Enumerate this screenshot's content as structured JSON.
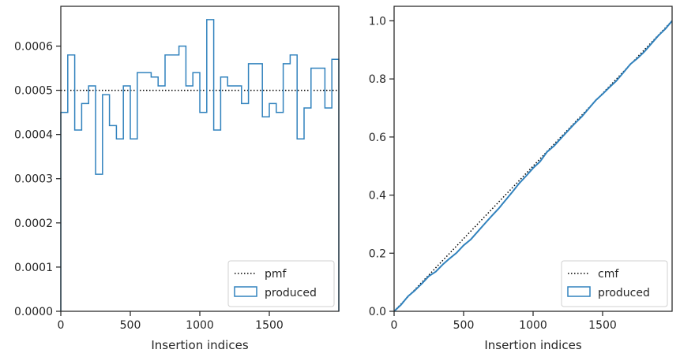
{
  "chart_data": [
    {
      "type": "histogram-step",
      "xlabel": "Insertion indices",
      "ylabel": "",
      "xlim": [
        0,
        2000
      ],
      "ylim": [
        0,
        0.00069
      ],
      "xticks": [
        0,
        500,
        1000,
        1500
      ],
      "xtick_labels": [
        "0",
        "500",
        "1000",
        "1500"
      ],
      "yticks": [
        0,
        0.0001,
        0.0002,
        0.0003,
        0.0004,
        0.0005,
        0.0006
      ],
      "ytick_labels": [
        "0.0000",
        "0.0001",
        "0.0002",
        "0.0003",
        "0.0004",
        "0.0005",
        "0.0006"
      ],
      "legend_position": "lower-right",
      "pmf": {
        "name": "pmf",
        "value": 0.0005,
        "style": "dotted",
        "color": "#000000"
      },
      "produced": {
        "name": "produced",
        "color": "#3182bd",
        "bin_edges": [
          0,
          50,
          100,
          150,
          200,
          250,
          300,
          350,
          400,
          450,
          500,
          550,
          600,
          650,
          700,
          750,
          800,
          850,
          900,
          950,
          1000,
          1050,
          1100,
          1150,
          1200,
          1250,
          1300,
          1350,
          1400,
          1450,
          1500,
          1550,
          1600,
          1650,
          1700,
          1750,
          1800,
          1850,
          1900,
          1950,
          2000
        ],
        "values": [
          0.00045,
          0.00058,
          0.00041,
          0.00047,
          0.00051,
          0.00031,
          0.00049,
          0.00042,
          0.00039,
          0.00051,
          0.00039,
          0.00054,
          0.00054,
          0.00053,
          0.00051,
          0.00058,
          0.00058,
          0.0006,
          0.00051,
          0.00054,
          0.00045,
          0.00066,
          0.00041,
          0.00053,
          0.00051,
          0.00051,
          0.00047,
          0.00056,
          0.00056,
          0.00044,
          0.00047,
          0.00045,
          0.00056,
          0.00058,
          0.00039,
          0.00046,
          0.00055,
          0.00055,
          0.00046,
          0.00057
        ]
      }
    },
    {
      "type": "line",
      "xlabel": "Insertion indices",
      "ylabel": "",
      "xlim": [
        0,
        2000
      ],
      "ylim": [
        0,
        1.05
      ],
      "xticks": [
        0,
        500,
        1000,
        1500
      ],
      "xtick_labels": [
        "0",
        "500",
        "1000",
        "1500"
      ],
      "yticks": [
        0,
        0.2,
        0.4,
        0.6,
        0.8,
        1.0
      ],
      "ytick_labels": [
        "0.0",
        "0.2",
        "0.4",
        "0.6",
        "0.8",
        "1.0"
      ],
      "legend_position": "lower-right",
      "cmf": {
        "name": "cmf",
        "x": [
          0,
          2000
        ],
        "y": [
          0,
          1.0
        ],
        "style": "dotted",
        "color": "#000000"
      },
      "produced": {
        "name": "produced",
        "color": "#3182bd",
        "x": [
          0,
          50,
          100,
          150,
          200,
          250,
          300,
          350,
          400,
          450,
          500,
          550,
          600,
          650,
          700,
          750,
          800,
          850,
          900,
          950,
          1000,
          1050,
          1100,
          1150,
          1200,
          1250,
          1300,
          1350,
          1400,
          1450,
          1500,
          1550,
          1600,
          1650,
          1700,
          1750,
          1800,
          1850,
          1900,
          1950,
          2000
        ],
        "y": [
          0.0,
          0.0225,
          0.0515,
          0.072,
          0.0955,
          0.121,
          0.1365,
          0.161,
          0.182,
          0.2015,
          0.227,
          0.2465,
          0.2735,
          0.3005,
          0.327,
          0.3525,
          0.3815,
          0.4105,
          0.4405,
          0.466,
          0.493,
          0.5155,
          0.5485,
          0.569,
          0.5955,
          0.621,
          0.6465,
          0.67,
          0.698,
          0.726,
          0.748,
          0.7715,
          0.794,
          0.822,
          0.851,
          0.8705,
          0.8935,
          0.921,
          0.9485,
          0.9715,
          1.0
        ]
      }
    }
  ]
}
